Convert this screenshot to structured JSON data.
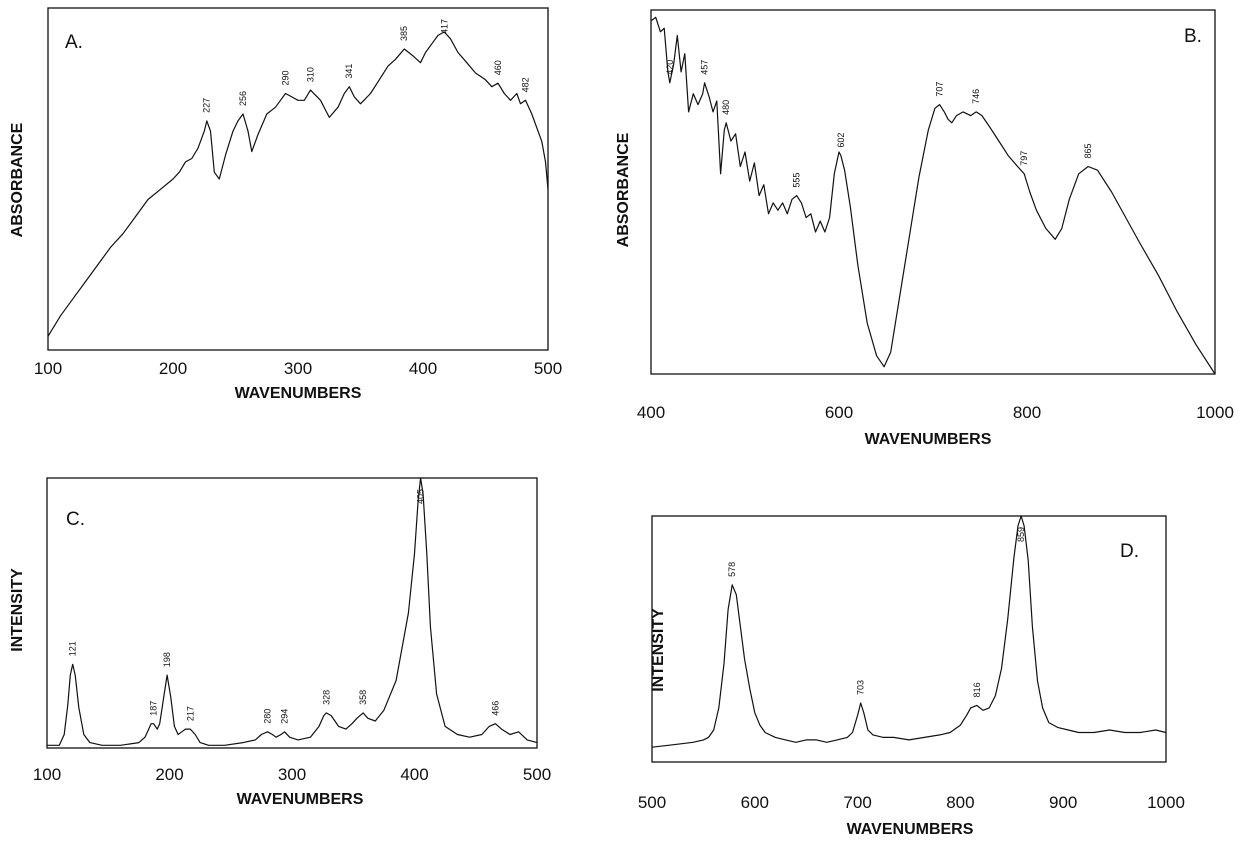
{
  "chart_data": [
    {
      "type": "line",
      "panel_label": "A.",
      "xlabel": "WAVENUMBERS",
      "ylabel": "ABSORBANCE",
      "xlim": [
        100,
        500
      ],
      "ylim": [
        0,
        1
      ],
      "x_ticks": [
        "100",
        "200",
        "300",
        "400",
        "500"
      ],
      "grid": false,
      "series": [
        {
          "x": [
            100,
            110,
            120,
            130,
            140,
            150,
            160,
            170,
            180,
            190,
            200,
            205,
            210,
            215,
            220,
            225,
            227,
            230,
            233,
            237,
            242,
            248,
            252,
            256,
            260,
            263,
            268,
            275,
            282,
            286,
            290,
            295,
            300,
            305,
            310,
            318,
            325,
            332,
            337,
            341,
            345,
            350,
            358,
            365,
            372,
            378,
            385,
            392,
            398,
            402,
            408,
            412,
            417,
            422,
            428,
            435,
            442,
            450,
            455,
            460,
            465,
            470,
            475,
            478,
            482,
            487,
            492,
            495,
            498,
            500
          ],
          "y": [
            0.04,
            0.1,
            0.15,
            0.2,
            0.25,
            0.3,
            0.34,
            0.39,
            0.44,
            0.47,
            0.5,
            0.52,
            0.55,
            0.56,
            0.59,
            0.64,
            0.67,
            0.64,
            0.52,
            0.5,
            0.57,
            0.64,
            0.67,
            0.69,
            0.64,
            0.58,
            0.63,
            0.69,
            0.71,
            0.73,
            0.75,
            0.74,
            0.73,
            0.73,
            0.76,
            0.73,
            0.68,
            0.71,
            0.75,
            0.77,
            0.74,
            0.72,
            0.75,
            0.79,
            0.83,
            0.85,
            0.88,
            0.86,
            0.84,
            0.87,
            0.9,
            0.92,
            0.93,
            0.91,
            0.87,
            0.84,
            0.81,
            0.79,
            0.77,
            0.78,
            0.75,
            0.73,
            0.75,
            0.72,
            0.73,
            0.69,
            0.64,
            0.61,
            0.55,
            0.47
          ]
        }
      ],
      "peaks": [
        {
          "x": 227,
          "label": "227"
        },
        {
          "x": 256,
          "label": "256"
        },
        {
          "x": 290,
          "label": "290"
        },
        {
          "x": 310,
          "label": "310"
        },
        {
          "x": 341,
          "label": "341"
        },
        {
          "x": 385,
          "label": "385"
        },
        {
          "x": 417,
          "label": "417"
        },
        {
          "x": 460,
          "label": "460"
        },
        {
          "x": 482,
          "label": "482"
        }
      ]
    },
    {
      "type": "line",
      "panel_label": "B.",
      "xlabel": "WAVENUMBERS",
      "ylabel": "ABSORBANCE",
      "xlim": [
        400,
        1000
      ],
      "ylim": [
        0,
        1
      ],
      "x_ticks": [
        "400",
        "600",
        "800",
        "1000"
      ],
      "grid": false,
      "series": [
        {
          "x": [
            400,
            405,
            410,
            414,
            418,
            420,
            424,
            428,
            432,
            436,
            440,
            445,
            450,
            455,
            457,
            462,
            466,
            470,
            474,
            478,
            480,
            485,
            490,
            495,
            500,
            505,
            510,
            515,
            520,
            525,
            530,
            535,
            540,
            545,
            550,
            555,
            560,
            565,
            570,
            575,
            580,
            585,
            590,
            595,
            600,
            602,
            606,
            612,
            620,
            630,
            640,
            648,
            655,
            665,
            675,
            685,
            695,
            702,
            707,
            712,
            716,
            720,
            725,
            732,
            740,
            746,
            752,
            760,
            770,
            780,
            790,
            797,
            803,
            810,
            820,
            830,
            837,
            845,
            855,
            865,
            875,
            890,
            905,
            920,
            940,
            960,
            980,
            1000
          ],
          "y": [
            0.97,
            0.98,
            0.94,
            0.95,
            0.83,
            0.8,
            0.85,
            0.93,
            0.83,
            0.88,
            0.72,
            0.77,
            0.74,
            0.77,
            0.8,
            0.76,
            0.72,
            0.75,
            0.55,
            0.67,
            0.69,
            0.64,
            0.66,
            0.57,
            0.61,
            0.53,
            0.58,
            0.49,
            0.52,
            0.44,
            0.47,
            0.45,
            0.47,
            0.44,
            0.48,
            0.49,
            0.47,
            0.43,
            0.44,
            0.39,
            0.42,
            0.39,
            0.43,
            0.55,
            0.61,
            0.6,
            0.56,
            0.46,
            0.3,
            0.14,
            0.05,
            0.02,
            0.06,
            0.22,
            0.38,
            0.54,
            0.67,
            0.73,
            0.74,
            0.72,
            0.7,
            0.69,
            0.71,
            0.72,
            0.71,
            0.72,
            0.71,
            0.68,
            0.64,
            0.6,
            0.57,
            0.55,
            0.5,
            0.45,
            0.4,
            0.37,
            0.4,
            0.48,
            0.55,
            0.57,
            0.56,
            0.5,
            0.43,
            0.36,
            0.27,
            0.17,
            0.08,
            0.0
          ]
        }
      ],
      "peaks": [
        {
          "x": 420,
          "label": "420"
        },
        {
          "x": 457,
          "label": "457"
        },
        {
          "x": 480,
          "label": "480"
        },
        {
          "x": 555,
          "label": "555"
        },
        {
          "x": 602,
          "label": "602"
        },
        {
          "x": 707,
          "label": "707"
        },
        {
          "x": 746,
          "label": "746"
        },
        {
          "x": 797,
          "label": "797"
        },
        {
          "x": 865,
          "label": "865"
        }
      ]
    },
    {
      "type": "line",
      "panel_label": "C.",
      "xlabel": "WAVENUMBERS",
      "ylabel": "INTENSITY",
      "xlim": [
        100,
        500
      ],
      "ylim": [
        0,
        1
      ],
      "x_ticks": [
        "100",
        "200",
        "300",
        "400",
        "500"
      ],
      "grid": false,
      "series": [
        {
          "x": [
            100,
            105,
            110,
            114,
            117,
            119,
            121,
            123,
            126,
            130,
            135,
            145,
            160,
            175,
            180,
            183,
            185,
            187,
            190,
            192,
            195,
            198,
            201,
            204,
            207,
            210,
            213,
            217,
            221,
            225,
            232,
            245,
            260,
            270,
            275,
            280,
            284,
            287,
            291,
            294,
            298,
            305,
            315,
            322,
            326,
            328,
            332,
            338,
            344,
            349,
            353,
            358,
            362,
            368,
            375,
            385,
            395,
            400,
            403,
            405,
            407,
            410,
            413,
            418,
            425,
            435,
            445,
            455,
            461,
            466,
            471,
            478,
            485,
            492,
            500
          ],
          "y": [
            0.01,
            0.01,
            0.01,
            0.05,
            0.16,
            0.27,
            0.31,
            0.27,
            0.15,
            0.05,
            0.02,
            0.01,
            0.01,
            0.02,
            0.04,
            0.07,
            0.09,
            0.09,
            0.07,
            0.09,
            0.18,
            0.27,
            0.19,
            0.08,
            0.05,
            0.06,
            0.07,
            0.07,
            0.05,
            0.02,
            0.01,
            0.01,
            0.02,
            0.03,
            0.05,
            0.06,
            0.05,
            0.04,
            0.05,
            0.06,
            0.04,
            0.03,
            0.04,
            0.08,
            0.12,
            0.13,
            0.12,
            0.08,
            0.07,
            0.09,
            0.11,
            0.13,
            0.11,
            0.1,
            0.14,
            0.25,
            0.5,
            0.72,
            0.92,
            1.0,
            0.94,
            0.72,
            0.45,
            0.2,
            0.08,
            0.05,
            0.04,
            0.05,
            0.08,
            0.09,
            0.07,
            0.05,
            0.06,
            0.03,
            0.02
          ]
        }
      ],
      "peaks": [
        {
          "x": 121,
          "label": "121"
        },
        {
          "x": 187,
          "label": "187"
        },
        {
          "x": 198,
          "label": "198"
        },
        {
          "x": 217,
          "label": "217"
        },
        {
          "x": 280,
          "label": "280"
        },
        {
          "x": 294,
          "label": "294"
        },
        {
          "x": 328,
          "label": "328"
        },
        {
          "x": 358,
          "label": "358"
        },
        {
          "x": 405,
          "label": "405"
        },
        {
          "x": 466,
          "label": "466"
        }
      ]
    },
    {
      "type": "line",
      "panel_label": "D.",
      "xlabel": "WAVENUMBERS",
      "ylabel": "INTENSITY",
      "xlim": [
        500,
        1000
      ],
      "ylim": [
        0,
        1
      ],
      "x_ticks": [
        "500",
        "600",
        "700",
        "800",
        "900",
        "1000"
      ],
      "grid": false,
      "series": [
        {
          "x": [
            500,
            520,
            540,
            550,
            555,
            560,
            565,
            570,
            574,
            578,
            582,
            586,
            590,
            595,
            600,
            605,
            610,
            620,
            630,
            640,
            650,
            660,
            670,
            680,
            690,
            695,
            700,
            703,
            706,
            710,
            715,
            725,
            735,
            750,
            765,
            780,
            790,
            800,
            806,
            810,
            816,
            822,
            828,
            834,
            840,
            846,
            852,
            856,
            859,
            862,
            866,
            870,
            875,
            880,
            886,
            895,
            905,
            915,
            930,
            945,
            960,
            975,
            990,
            1000
          ],
          "y": [
            0.06,
            0.07,
            0.08,
            0.09,
            0.1,
            0.13,
            0.22,
            0.4,
            0.62,
            0.72,
            0.68,
            0.55,
            0.42,
            0.3,
            0.2,
            0.15,
            0.12,
            0.1,
            0.09,
            0.08,
            0.09,
            0.09,
            0.08,
            0.09,
            0.1,
            0.12,
            0.19,
            0.24,
            0.2,
            0.13,
            0.11,
            0.1,
            0.1,
            0.09,
            0.1,
            0.11,
            0.12,
            0.15,
            0.19,
            0.22,
            0.23,
            0.21,
            0.22,
            0.27,
            0.38,
            0.58,
            0.83,
            0.96,
            1.0,
            0.96,
            0.82,
            0.55,
            0.33,
            0.22,
            0.16,
            0.14,
            0.13,
            0.12,
            0.12,
            0.13,
            0.12,
            0.12,
            0.13,
            0.12
          ]
        }
      ],
      "peaks": [
        {
          "x": 578,
          "label": "578"
        },
        {
          "x": 703,
          "label": "703"
        },
        {
          "x": 816,
          "label": "816"
        },
        {
          "x": 859,
          "label": "859"
        }
      ]
    }
  ]
}
